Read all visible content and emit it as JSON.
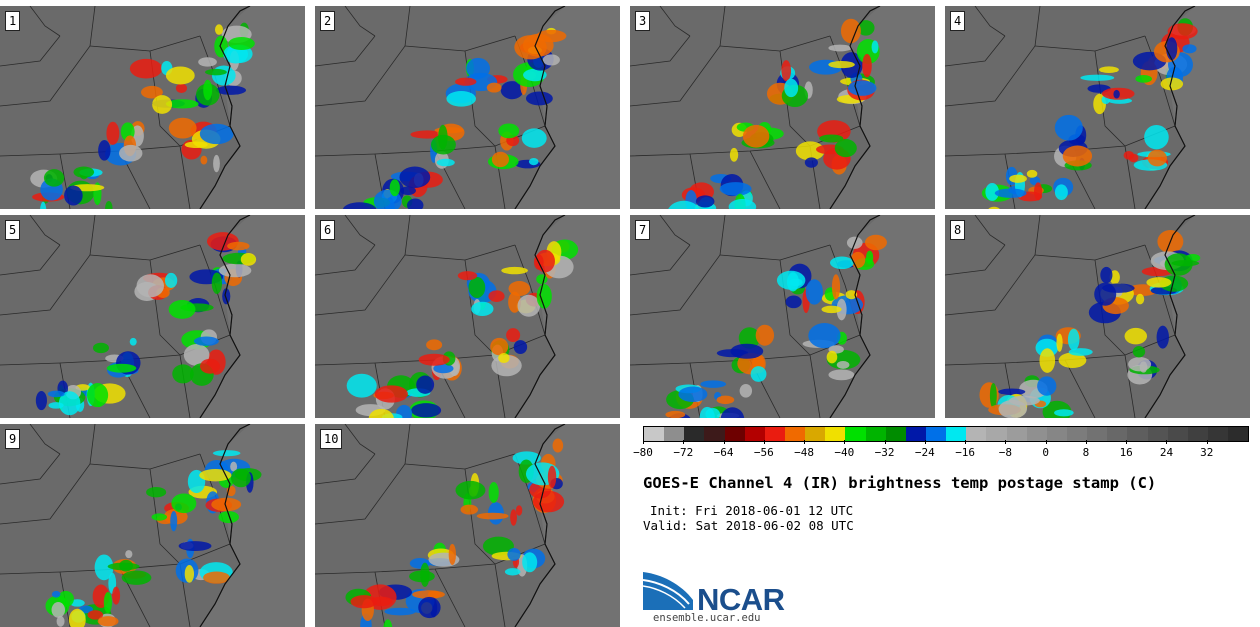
{
  "panels": [
    {
      "num": "1"
    },
    {
      "num": "2"
    },
    {
      "num": "3"
    },
    {
      "num": "4"
    },
    {
      "num": "5"
    },
    {
      "num": "6"
    },
    {
      "num": "7"
    },
    {
      "num": "8"
    },
    {
      "num": "9"
    },
    {
      "num": "10"
    }
  ],
  "colorbar": {
    "colors": [
      "#c8c8c8",
      "#8e8e8e",
      "#2a2a2a",
      "#3d1a1a",
      "#6e0000",
      "#b30000",
      "#ea1c10",
      "#f06a00",
      "#d9a800",
      "#f0e000",
      "#00e000",
      "#00b400",
      "#008c00",
      "#0018a8",
      "#0070e8",
      "#00e8f0",
      "#b4b4b4",
      "#a8a8a8",
      "#9c9c9c",
      "#909090",
      "#868686",
      "#7c7c7c",
      "#727272",
      "#686868",
      "#5e5e5e",
      "#545454",
      "#4a4a4a",
      "#404040",
      "#363636",
      "#2c2c2c"
    ],
    "ticks": [
      "−80",
      "−72",
      "−64",
      "−56",
      "−48",
      "−40",
      "−32",
      "−24",
      "−16",
      "−8",
      "0",
      "8",
      "16",
      "24",
      "32"
    ]
  },
  "title": "GOES-E Channel 4 (IR) brightness temp postage stamp (C)",
  "init": "Init: Fri 2018-06-01 12 UTC",
  "valid": "Valid: Sat 2018-06-02 08 UTC",
  "logo": {
    "text": "NCAR",
    "url": "ensemble.ucar.edu"
  }
}
